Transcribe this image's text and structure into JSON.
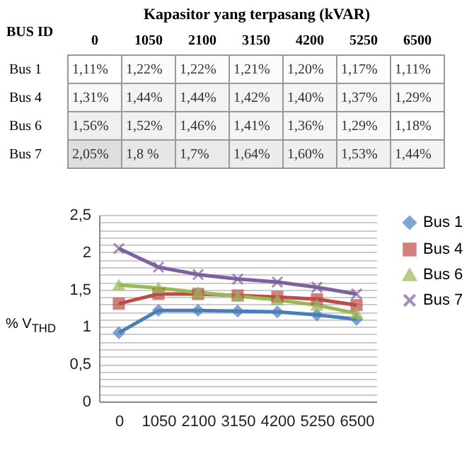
{
  "chart_data": [
    {
      "type": "heatmap",
      "xlabel": "Kapasitor yang terpasang (kVAR)",
      "ylabel": "BUS ID",
      "categories": [
        "0",
        "1050",
        "2100",
        "3150",
        "4200",
        "5250",
        "6500"
      ],
      "y_categories": [
        "Bus 1",
        "Bus 4",
        "Bus 6",
        "Bus 7"
      ],
      "cells": [
        [
          1.11,
          1.22,
          1.22,
          1.21,
          1.2,
          1.17,
          1.11
        ],
        [
          1.31,
          1.44,
          1.44,
          1.42,
          1.4,
          1.37,
          1.29
        ],
        [
          1.56,
          1.52,
          1.46,
          1.41,
          1.36,
          1.29,
          1.18
        ],
        [
          2.05,
          1.8,
          1.7,
          1.64,
          1.6,
          1.53,
          1.44
        ]
      ],
      "cell_labels": [
        [
          "1,11%",
          "1,22%",
          "1,22%",
          "1,21%",
          "1,20%",
          "1,17%",
          "1,11%"
        ],
        [
          "1,31%",
          "1,44%",
          "1,44%",
          "1,42%",
          "1,40%",
          "1,37%",
          "1,29%"
        ],
        [
          "1,56%",
          "1,52%",
          "1,46%",
          "1,41%",
          "1,36%",
          "1,29%",
          "1,18%"
        ],
        [
          "2,05%",
          "1,8 %",
          "1,7%",
          "1,64%",
          "1,60%",
          "1,53%",
          "1,44%"
        ]
      ]
    },
    {
      "type": "line",
      "ylabel": "% V$_{THD}$",
      "categories": [
        "0",
        "1050",
        "2100",
        "3150",
        "4200",
        "5250",
        "6500"
      ],
      "series": [
        {
          "name": "Bus 1",
          "color": "#4a7ebb",
          "marker": "diamond",
          "values": [
            0.92,
            1.22,
            1.22,
            1.21,
            1.2,
            1.16,
            1.1
          ]
        },
        {
          "name": "Bus 4",
          "color": "#be4b48",
          "marker": "square",
          "values": [
            1.31,
            1.44,
            1.44,
            1.42,
            1.4,
            1.37,
            1.29
          ]
        },
        {
          "name": "Bus 6",
          "color": "#98b954",
          "marker": "triangle",
          "values": [
            1.56,
            1.52,
            1.46,
            1.41,
            1.36,
            1.29,
            1.18
          ]
        },
        {
          "name": "Bus 7",
          "color": "#7d60a0",
          "marker": "cross",
          "values": [
            2.05,
            1.8,
            1.7,
            1.64,
            1.6,
            1.53,
            1.44
          ]
        }
      ],
      "ylim": [
        0,
        2.5
      ],
      "yticks": [
        0,
        {
          "value": 0.1,
          "label": null
        },
        {
          "value": 0.2,
          "label": null
        },
        {
          "value": 0.3,
          "label": null
        },
        {
          "value": 0.4,
          "label": null
        },
        {
          "value": 0.5,
          "label": "0,5"
        },
        {
          "value": 0.6,
          "label": null
        },
        {
          "value": 0.7,
          "label": null
        },
        {
          "value": 0.8,
          "label": null
        },
        {
          "value": 0.9,
          "label": null
        },
        1,
        {
          "value": 1.1,
          "label": null
        },
        {
          "value": 1.2,
          "label": null
        },
        {
          "value": 1.3,
          "label": null
        },
        {
          "value": 1.4,
          "label": null
        },
        {
          "value": 1.5,
          "label": "1,5"
        },
        {
          "value": 1.6,
          "label": null
        },
        {
          "value": 1.7,
          "label": null
        },
        {
          "value": 1.8,
          "label": null
        },
        {
          "value": 1.9,
          "label": null
        },
        2,
        {
          "value": 2.1,
          "label": null
        },
        {
          "value": 2.2,
          "label": null
        },
        {
          "value": 2.3,
          "label": null
        },
        {
          "value": 2.4,
          "label": null
        },
        {
          "value": 2.5,
          "label": "2,5"
        }
      ],
      "grid": "y",
      "legend": "right"
    }
  ]
}
